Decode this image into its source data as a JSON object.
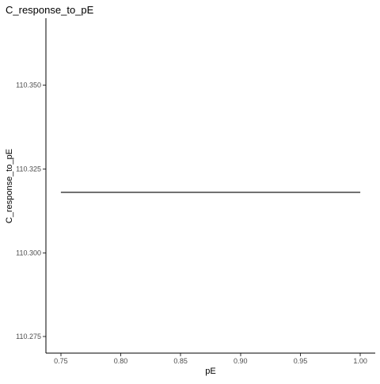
{
  "chart_data": {
    "type": "line",
    "title": "C_response_to_pE",
    "xlabel": "pE",
    "ylabel": "C_response_to_pE",
    "x": [
      0.75,
      1.0
    ],
    "series": [
      {
        "values": [
          110.318,
          110.318
        ],
        "color": "#000000"
      }
    ],
    "xlim": [
      0.7375,
      1.0125
    ],
    "ylim": [
      110.2701,
      110.3699
    ],
    "xticks": [
      0.75,
      0.8,
      0.85,
      0.9,
      0.95,
      1.0
    ],
    "xtick_labels": [
      "0.75",
      "0.80",
      "0.85",
      "0.90",
      "0.95",
      "1.00"
    ],
    "yticks": [
      110.275,
      110.3,
      110.325,
      110.35
    ],
    "ytick_labels": [
      "110.275",
      "110.300",
      "110.325",
      "110.350"
    ],
    "grid": false,
    "legend": "none"
  }
}
